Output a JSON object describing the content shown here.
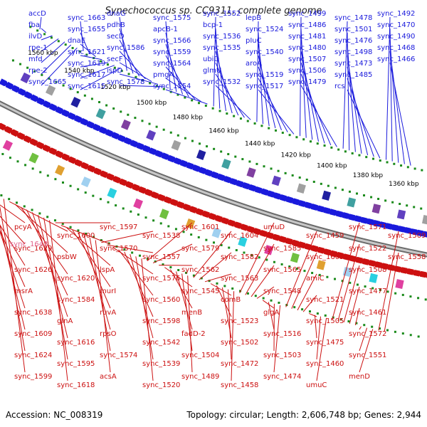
{
  "title": "Synechococcus sp. CC9311, complete genome",
  "footer": {
    "accession": "Accession: NC_008319",
    "summary": "Topology: circular; Length: 2,606,748 bp; Genes: 2,944"
  },
  "colors": {
    "forward": "#1a1adc",
    "reverse": "#cc1010",
    "pseudo": "#e0608a",
    "backbone": "#8c8c8c",
    "tick": "#1a8a1a"
  },
  "kbp_labels": [
    "1560 kbp",
    "1540 kbp",
    "1520 kbp",
    "1500 kbp",
    "1480 kbp",
    "1460 kbp",
    "1440 kbp",
    "1420 kbp",
    "1400 kbp",
    "1380 kbp",
    "1360 kbp"
  ],
  "forward_genes": [
    "accD",
    "fba",
    "ilvD",
    "rpe-1",
    "mfd",
    "rpe-2",
    "sync_1665",
    "sync_1663",
    "sync_1655",
    "dnaE",
    "sync_1621",
    "sync_1619",
    "sync_1617",
    "sync_1615",
    "dnaG",
    "pdhB",
    "secD",
    "sync_1586",
    "secF",
    "ispD",
    "sync_1578",
    "sync_1575",
    "apcB-1",
    "sync_1566",
    "sync_1559",
    "sync_1564",
    "pmgA",
    "sync_1554",
    "sync_1552",
    "bcp-1",
    "sync_1536",
    "sync_1535",
    "ubiD",
    "glmU",
    "sync_1532",
    "lepB",
    "sync_1524",
    "pIuC",
    "sync_1540",
    "aroA",
    "sync_1519",
    "sync_1517",
    "sync_1499",
    "sync_1486",
    "sync_1481",
    "sync_1480",
    "sync_1507",
    "sync_1506",
    "sync_1479",
    "sync_1478",
    "sync_1501",
    "sync_1476",
    "sync_1498",
    "sync_1473",
    "sync_1485",
    "rcs",
    "sync_1492",
    "sync_1470",
    "sync_1490",
    "sync_1468",
    "sync_1466"
  ],
  "reverse_genes": [
    "pcyA",
    "sync_1629",
    "sync_1626",
    "msrA",
    "sync_1638",
    "sync_1609",
    "sync_1624",
    "sync_1599",
    "sync_1600",
    "psbW",
    "sync_1620",
    "sync_1584",
    "glnA",
    "sync_1616",
    "sync_1595",
    "sync_1618",
    "sync_1597",
    "sync_1570",
    "lspA",
    "murI",
    "ruvA",
    "rpsO",
    "sync_1574",
    "acsA",
    "sync_1538",
    "sync_1557",
    "sync_1576",
    "sync_1560",
    "sync_1598",
    "sync_1542",
    "sync_1539",
    "sync_1520",
    "sync_1601",
    "sync_1579",
    "sync_1562",
    "sync_1545",
    "menB",
    "fadD-2",
    "sync_1504",
    "sync_1489",
    "sync_1604",
    "sync_1582",
    "sync_1563",
    "comB",
    "sync_1523",
    "sync_1502",
    "sync_1472",
    "sync_1458",
    "umuD",
    "sync_1585",
    "sync_1565",
    "sync_1548",
    "glgA",
    "sync_1516",
    "sync_1503",
    "sync_1474",
    "sync_1459",
    "sync_1605",
    "amiC",
    "sync_1521",
    "sync_1505",
    "sync_1475",
    "sync_1460",
    "umuC",
    "sync_1571",
    "sync_1522",
    "sync_1508",
    "sync_1477",
    "sync_1461",
    "sync_1572",
    "sync_1551",
    "menD",
    "sync_1509",
    "sync_1558"
  ],
  "pseudo_genes": [
    "sync_1643"
  ]
}
